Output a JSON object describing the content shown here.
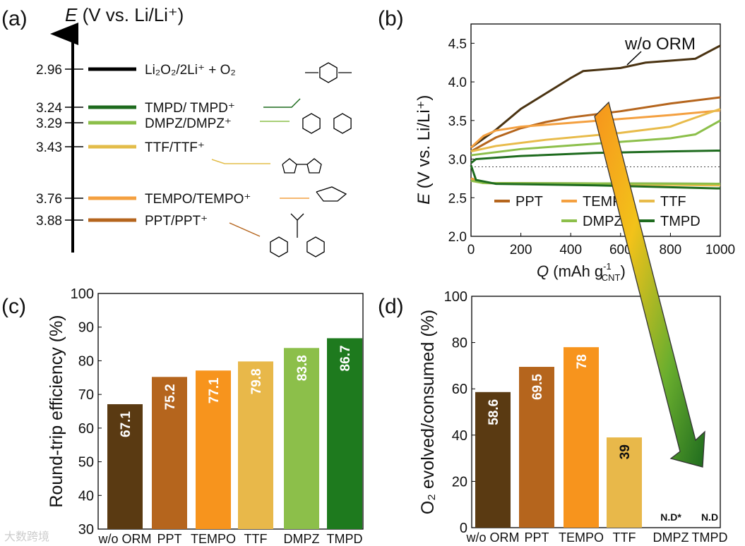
{
  "panel_labels": [
    "(a)",
    "(b)",
    "(c)",
    "(d)"
  ],
  "watermark": "大数跨境",
  "chart_data": [
    {
      "type": "table",
      "panel": "a",
      "title": "E (V vs. Li/Li+)",
      "axis_label_italic": "E",
      "axis_label_rest": " (V vs. Li/Li⁺)",
      "levels": [
        {
          "value": 2.96,
          "label": "Li₂O₂/2Li⁺ + O₂",
          "color": "#000000"
        },
        {
          "value": 3.24,
          "label": "TMPD/ TMPD⁺",
          "color": "#1e6b1e"
        },
        {
          "value": 3.29,
          "label": "DMPZ/DMPZ⁺",
          "color": "#8cbf4a"
        },
        {
          "value": 3.43,
          "label": "TTF/TTF⁺",
          "color": "#e3bd4a"
        },
        {
          "value": 3.76,
          "label": "TEMPO/TEMPO⁺",
          "color": "#f4a040"
        },
        {
          "value": 3.88,
          "label": "PPT/PPT⁺",
          "color": "#b5651d"
        }
      ]
    },
    {
      "type": "line",
      "panel": "b",
      "xlabel": "Q (mAh g⁻¹CNT)",
      "xlabel_main": "Q (mAh g",
      "xlabel_sup": "-1",
      "xlabel_sub": "CNT",
      "ylabel": "E (V vs. Li/Li⁺)",
      "ylabel_italic": "E",
      "ylabel_rest": " (V vs. Li/Li⁺)",
      "xlim": [
        0,
        1000
      ],
      "ylim": [
        2.0,
        4.75
      ],
      "xticks": [
        0,
        200,
        400,
        600,
        800,
        1000
      ],
      "yticks": [
        2.0,
        2.5,
        3.0,
        3.5,
        4.0,
        4.5
      ],
      "reference_line": 2.9,
      "annotation": "w/o ORM",
      "legend_placement": "bottom",
      "series": [
        {
          "name": "w/o ORM",
          "color": "#4a3312",
          "legend": false,
          "charge": [
            [
              0,
              3.15
            ],
            [
              100,
              3.38
            ],
            [
              200,
              3.65
            ],
            [
              300,
              3.85
            ],
            [
              400,
              4.05
            ],
            [
              450,
              4.14
            ],
            [
              600,
              4.18
            ],
            [
              700,
              4.25
            ],
            [
              900,
              4.3
            ],
            [
              1000,
              4.47
            ]
          ],
          "discharge": [
            [
              0,
              2.75
            ],
            [
              50,
              2.69
            ],
            [
              1000,
              2.68
            ]
          ]
        },
        {
          "name": "PPT",
          "color": "#b5651d",
          "legend": true,
          "charge": [
            [
              0,
              3.1
            ],
            [
              100,
              3.28
            ],
            [
              200,
              3.4
            ],
            [
              300,
              3.48
            ],
            [
              400,
              3.54
            ],
            [
              600,
              3.62
            ],
            [
              800,
              3.72
            ],
            [
              1000,
              3.8
            ]
          ],
          "discharge": [
            [
              0,
              2.75
            ],
            [
              50,
              2.69
            ],
            [
              1000,
              2.67
            ]
          ]
        },
        {
          "name": "TEMPO",
          "color": "#f4a040",
          "legend": true,
          "charge": [
            [
              0,
              3.15
            ],
            [
              50,
              3.3
            ],
            [
              100,
              3.37
            ],
            [
              200,
              3.42
            ],
            [
              400,
              3.47
            ],
            [
              600,
              3.52
            ],
            [
              800,
              3.57
            ],
            [
              1000,
              3.63
            ]
          ],
          "discharge": [
            [
              0,
              2.75
            ],
            [
              50,
              2.69
            ],
            [
              1000,
              2.67
            ]
          ]
        },
        {
          "name": "TTF",
          "color": "#e8bb4a",
          "legend": true,
          "charge": [
            [
              0,
              3.1
            ],
            [
              100,
              3.17
            ],
            [
              300,
              3.25
            ],
            [
              600,
              3.34
            ],
            [
              800,
              3.42
            ],
            [
              850,
              3.48
            ],
            [
              1000,
              3.65
            ]
          ],
          "discharge": [
            [
              0,
              2.72
            ],
            [
              50,
              2.69
            ],
            [
              1000,
              2.66
            ]
          ]
        },
        {
          "name": "DMPZ",
          "color": "#8cbf4a",
          "legend": true,
          "charge": [
            [
              0,
              3.05
            ],
            [
              200,
              3.13
            ],
            [
              500,
              3.2
            ],
            [
              800,
              3.27
            ],
            [
              900,
              3.32
            ],
            [
              1000,
              3.5
            ]
          ],
          "discharge": [
            [
              0,
              2.72
            ],
            [
              50,
              2.69
            ],
            [
              1000,
              2.68
            ]
          ]
        },
        {
          "name": "TMPD",
          "color": "#1e6b1e",
          "legend": true,
          "charge": [
            [
              0,
              2.95
            ],
            [
              20,
              3.0
            ],
            [
              200,
              3.04
            ],
            [
              500,
              3.08
            ],
            [
              800,
              3.1
            ],
            [
              1000,
              3.11
            ]
          ],
          "discharge": [
            [
              0,
              2.92
            ],
            [
              20,
              2.73
            ],
            [
              100,
              2.68
            ],
            [
              500,
              2.66
            ],
            [
              1000,
              2.62
            ]
          ]
        }
      ]
    },
    {
      "type": "bar",
      "panel": "c",
      "ylabel": "Round-trip efficiency (%)",
      "ylim": [
        30,
        100
      ],
      "yticks": [
        30,
        40,
        50,
        60,
        70,
        80,
        90,
        100
      ],
      "categories": [
        "w/o ORM",
        "PPT",
        "TEMPO",
        "TTF",
        "DMPZ",
        "TMPD"
      ],
      "values": [
        67.1,
        75.2,
        77.1,
        79.8,
        83.8,
        86.7
      ],
      "labels": [
        "67.1",
        "75.2",
        "77.1",
        "79.8",
        "83.8",
        "86.7"
      ],
      "colors": [
        "#5a3a12",
        "#b5651d",
        "#f7941d",
        "#e8b84a",
        "#8cbf4a",
        "#1e7a1e"
      ]
    },
    {
      "type": "bar",
      "panel": "d",
      "ylabel": "O₂ evolved/consumed (%)",
      "ylim": [
        0,
        100
      ],
      "yticks": [
        0,
        20,
        40,
        60,
        80,
        100
      ],
      "categories": [
        "w/o ORM",
        "PPT",
        "TEMPO",
        "TTF",
        "DMPZ",
        "TMPD"
      ],
      "values": [
        58.6,
        69.5,
        78,
        39,
        null,
        null
      ],
      "labels": [
        "58.6",
        "69.5",
        "78",
        "39",
        "N.D*",
        "N.D"
      ],
      "colors": [
        "#5a3a12",
        "#b5651d",
        "#f7941d",
        "#e8b84a",
        "#8cbf4a",
        "#1e7a1e"
      ]
    }
  ]
}
